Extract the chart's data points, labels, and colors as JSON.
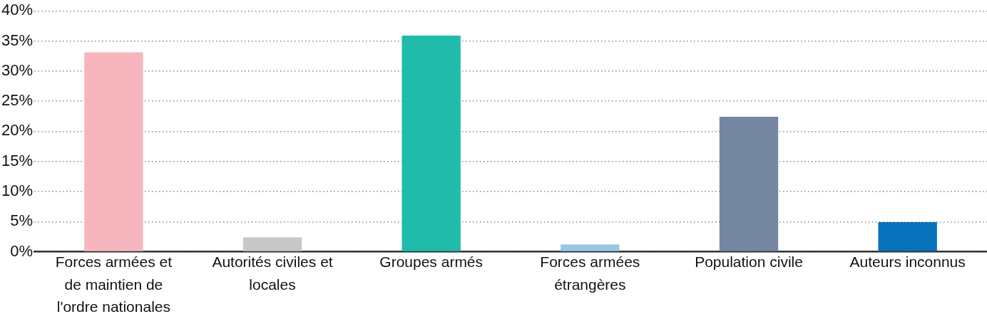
{
  "chart_data": {
    "type": "bar",
    "categories": [
      "Forces armées et de maintien de l'ordre nationales",
      "Autorités civiles et locales",
      "Groupes armés",
      "Forces armées étrangères",
      "Population civile",
      "Auteurs inconnus"
    ],
    "values": [
      33.1,
      2.4,
      35.9,
      1.2,
      22.4,
      4.9
    ],
    "colors": [
      "#f7b6be",
      "#c8c8c8",
      "#20bbab",
      "#98c6e4",
      "#7586a0",
      "#0872bc"
    ],
    "ylim": [
      0,
      40
    ],
    "yticks": [
      {
        "value": 0,
        "label": "0%"
      },
      {
        "value": 5,
        "label": "5%"
      },
      {
        "value": 10,
        "label": "10%"
      },
      {
        "value": 15,
        "label": "15%"
      },
      {
        "value": 20,
        "label": "20%"
      },
      {
        "value": 25,
        "label": "25%"
      },
      {
        "value": 30,
        "label": "30%"
      },
      {
        "value": 35,
        "label": "35%"
      },
      {
        "value": 40,
        "label": "40%"
      }
    ],
    "grid": "y",
    "legend": false
  }
}
